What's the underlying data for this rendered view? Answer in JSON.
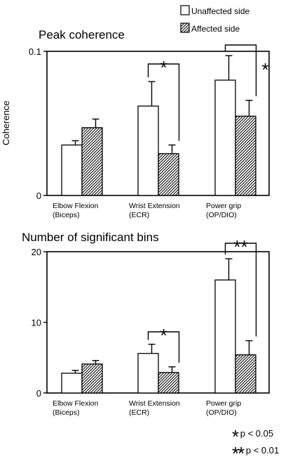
{
  "legend": {
    "unaffected": "Unaffected side",
    "affected": "Affected side"
  },
  "chart_data": [
    {
      "type": "bar",
      "title": "Peak coherence",
      "ylabel": "Coherence",
      "ylim": [
        0,
        0.1
      ],
      "yticks": [
        "0",
        "0.1"
      ],
      "categories": [
        [
          "Elbow Flexion",
          "(Biceps)"
        ],
        [
          "Wrist Extension",
          "(ECR)"
        ],
        [
          "Power grip",
          "(OP/DIO)"
        ]
      ],
      "series": [
        {
          "name": "Unaffected side",
          "values": [
            0.035,
            0.062,
            0.08
          ],
          "errors": [
            0.003,
            0.017,
            0.017
          ]
        },
        {
          "name": "Affected side",
          "values": [
            0.047,
            0.029,
            0.055
          ],
          "errors": [
            0.006,
            0.006,
            0.011
          ]
        }
      ],
      "significance": [
        {
          "category": 1,
          "label": "*"
        },
        {
          "category": 2,
          "label": "*"
        }
      ]
    },
    {
      "type": "bar",
      "title": "Number of significant bins",
      "ylabel": "",
      "ylim": [
        0,
        20
      ],
      "yticks": [
        "0",
        "10",
        "20"
      ],
      "categories": [
        [
          "Elbow Flexion",
          "(Biceps)"
        ],
        [
          "Wrist Extension",
          "(ECR)"
        ],
        [
          "Power grip",
          "(OP/DIO)"
        ]
      ],
      "series": [
        {
          "name": "Unaffected side",
          "values": [
            2.8,
            5.6,
            16.0
          ],
          "errors": [
            0.4,
            1.3,
            3.0
          ]
        },
        {
          "name": "Affected side",
          "values": [
            4.1,
            2.9,
            5.4
          ],
          "errors": [
            0.5,
            0.8,
            2.0
          ]
        }
      ],
      "significance": [
        {
          "category": 1,
          "label": "*"
        },
        {
          "category": 2,
          "label": "**"
        }
      ]
    }
  ],
  "significance_notes": [
    {
      "stars": "*",
      "text": "p < 0.05"
    },
    {
      "stars": "**",
      "text": "p < 0.01"
    }
  ]
}
